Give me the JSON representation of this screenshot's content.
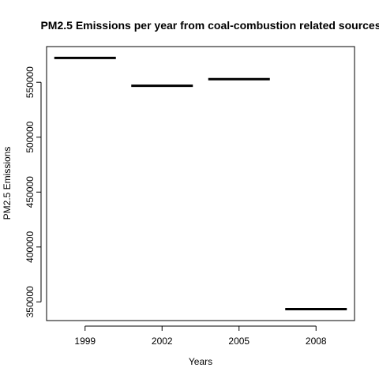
{
  "chart_data": {
    "type": "bar",
    "title": "PM2.5 Emissions per year from coal-combustion related sources",
    "xlabel": "Years",
    "ylabel": "PM2.5 Emissions",
    "categories": [
      "1999",
      "2002",
      "2005",
      "2008"
    ],
    "values": [
      572126,
      546789,
      552881,
      343432
    ],
    "ylim": [
      333000,
      582500
    ],
    "yticks": [
      350000,
      400000,
      450000,
      500000,
      550000
    ],
    "grid": false,
    "legend": "none"
  }
}
